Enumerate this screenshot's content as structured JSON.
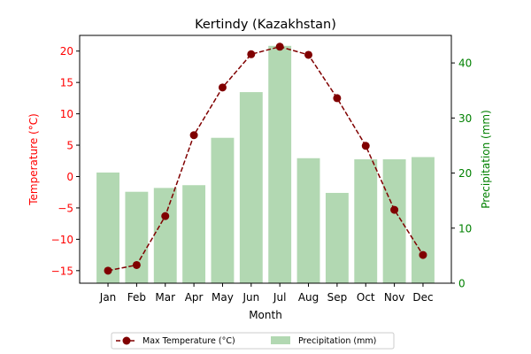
{
  "chart_data": {
    "type": "bar+line",
    "title": "Kertindy (Kazakhstan)",
    "xlabel": "Month",
    "categories": [
      "Jan",
      "Feb",
      "Mar",
      "Apr",
      "May",
      "Jun",
      "Jul",
      "Aug",
      "Sep",
      "Oct",
      "Nov",
      "Dec"
    ],
    "left_axis": {
      "label": "Temperature (°C)",
      "color": "#ff0000",
      "ylim": [
        -17,
        22.5
      ],
      "ticks": [
        -15,
        -10,
        -5,
        0,
        5,
        10,
        15,
        20
      ],
      "tick_labels": [
        "−15",
        "−10",
        "−5",
        "0",
        "5",
        "10",
        "15",
        "20"
      ]
    },
    "right_axis": {
      "label": "Precipitation (mm)",
      "color": "#008000",
      "ylim": [
        0,
        45
      ],
      "ticks": [
        0,
        10,
        20,
        30,
        40
      ],
      "tick_labels": [
        "0",
        "10",
        "20",
        "30",
        "40"
      ]
    },
    "series": [
      {
        "name": "Max Temperature (°C)",
        "type": "line",
        "axis": "left",
        "color": "#800000",
        "style": "dashed",
        "marker": "circle",
        "values": [
          -15.0,
          -14.1,
          -6.3,
          6.6,
          14.2,
          19.5,
          20.7,
          19.4,
          12.5,
          4.9,
          -5.3,
          -12.5
        ]
      },
      {
        "name": "Precipitation (mm)",
        "type": "bar",
        "axis": "right",
        "color": "#b2d8b2",
        "values": [
          20.1,
          16.6,
          17.3,
          17.8,
          26.4,
          34.7,
          43.1,
          22.7,
          16.4,
          22.5,
          22.5,
          22.9
        ]
      }
    ],
    "legend": {
      "placement": "bottom-center",
      "columns": 2
    }
  }
}
